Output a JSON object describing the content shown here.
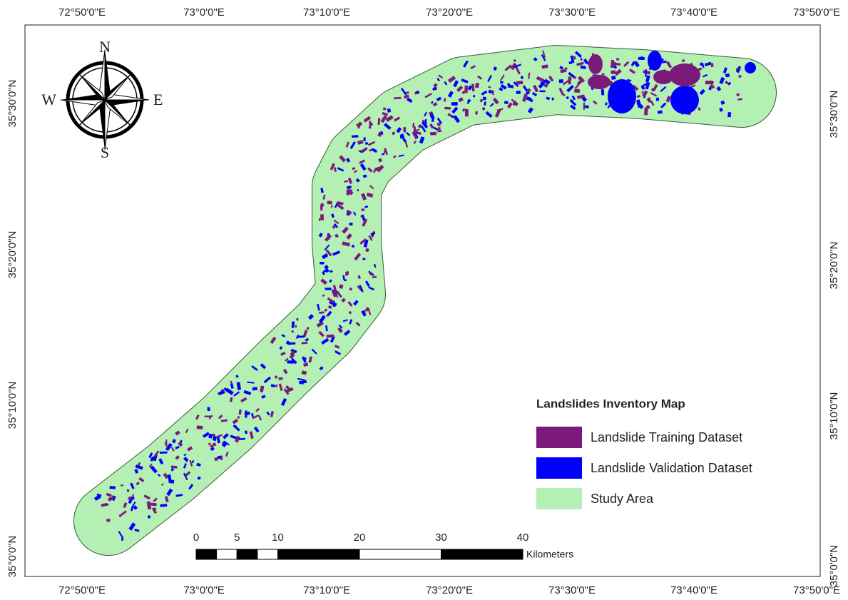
{
  "frame": {
    "top_labels": [
      "72°50'0\"E",
      "73°0'0\"E",
      "73°10'0\"E",
      "73°20'0\"E",
      "73°30'0\"E",
      "73°40'0\"E",
      "73°50'0\"E"
    ],
    "bottom_labels": [
      "72°50'0\"E",
      "73°0'0\"E",
      "73°10'0\"E",
      "73°20'0\"E",
      "73°30'0\"E",
      "73°40'0\"E",
      "73°50'0\"E"
    ],
    "left_labels": [
      "35°30'0\"N",
      "35°20'0\"N",
      "35°10'0\"N",
      "35°0'0\"N"
    ],
    "right_labels": [
      "35°30'0\"N",
      "35°20'0\"N",
      "35°10'0\"N",
      "35°0'0\"N"
    ]
  },
  "compass": {
    "north": "N",
    "south": "S",
    "east": "E",
    "west": "W"
  },
  "legend": {
    "title": "Landslides Inventory Map",
    "items": [
      {
        "label": "Landslide Training Dataset",
        "color": "#7b1a7b"
      },
      {
        "label": "Landslide Validation Dataset",
        "color": "#0000ff"
      },
      {
        "label": "Study Area",
        "color": "#b4f0b4"
      }
    ]
  },
  "scale_bar": {
    "ticks": [
      0,
      5,
      10,
      20,
      30,
      40
    ],
    "unit": "Kilometers"
  }
}
